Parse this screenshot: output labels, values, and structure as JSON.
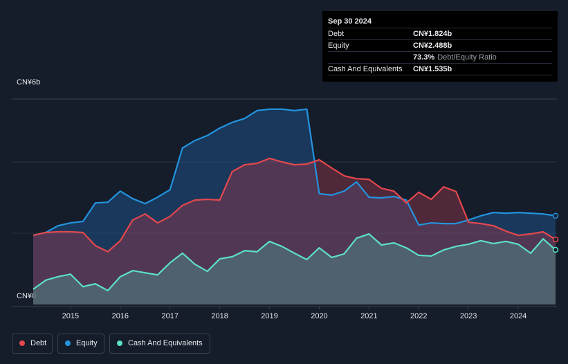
{
  "chart_data": {
    "type": "area",
    "x": [
      2014.25,
      2014.5,
      2014.75,
      2015.0,
      2015.25,
      2015.5,
      2015.75,
      2016.0,
      2016.25,
      2016.5,
      2016.75,
      2017.0,
      2017.25,
      2017.5,
      2017.75,
      2018.0,
      2018.25,
      2018.5,
      2018.75,
      2019.0,
      2019.25,
      2019.5,
      2019.75,
      2020.0,
      2020.25,
      2020.5,
      2020.75,
      2021.0,
      2021.25,
      2021.5,
      2021.75,
      2022.0,
      2022.25,
      2022.5,
      2022.75,
      2023.0,
      2023.25,
      2023.5,
      2023.75,
      2024.0,
      2024.25,
      2024.5,
      2024.75
    ],
    "xlim": [
      2014.25,
      2024.75
    ],
    "xticks": [
      2015,
      2016,
      2017,
      2018,
      2019,
      2020,
      2021,
      2022,
      2023,
      2024
    ],
    "ylim": [
      0,
      6
    ],
    "yticks": [
      {
        "value": 0,
        "label": "CN¥0"
      },
      {
        "value": 6,
        "label": "CN¥6b"
      }
    ],
    "ygrid": [
      2,
      4
    ],
    "series": [
      {
        "name": "Debt",
        "color": "#e5484d",
        "fill": "rgba(150,55,75,0.45)",
        "values": [
          1.94,
          2.02,
          2.04,
          2.04,
          2.02,
          1.65,
          1.48,
          1.79,
          2.37,
          2.54,
          2.29,
          2.47,
          2.78,
          2.93,
          2.95,
          2.93,
          3.73,
          3.92,
          3.96,
          4.1,
          4.0,
          3.92,
          3.94,
          4.06,
          3.83,
          3.61,
          3.53,
          3.51,
          3.26,
          3.18,
          2.85,
          3.15,
          2.95,
          3.3,
          3.17,
          2.31,
          2.27,
          2.21,
          2.06,
          1.94,
          1.98,
          2.04,
          1.824
        ]
      },
      {
        "name": "Equity",
        "color": "#2394df",
        "fill": "rgba(30,90,150,0.45)",
        "values": [
          1.94,
          2.02,
          2.21,
          2.29,
          2.33,
          2.85,
          2.87,
          3.18,
          2.97,
          2.83,
          3.01,
          3.22,
          4.39,
          4.6,
          4.74,
          4.95,
          5.11,
          5.22,
          5.44,
          5.48,
          5.48,
          5.44,
          5.48,
          3.11,
          3.07,
          3.18,
          3.44,
          3.01,
          2.99,
          3.03,
          2.93,
          2.23,
          2.29,
          2.27,
          2.27,
          2.37,
          2.49,
          2.58,
          2.56,
          2.58,
          2.56,
          2.54,
          2.488
        ]
      },
      {
        "name": "Cash And Equivalents",
        "color": "#5ce0c6",
        "fill": "rgba(80,160,150,0.4)",
        "values": [
          0.43,
          0.68,
          0.78,
          0.85,
          0.5,
          0.58,
          0.39,
          0.78,
          0.95,
          0.89,
          0.83,
          1.17,
          1.44,
          1.13,
          0.93,
          1.28,
          1.34,
          1.51,
          1.48,
          1.77,
          1.63,
          1.44,
          1.26,
          1.59,
          1.32,
          1.42,
          1.86,
          1.98,
          1.67,
          1.73,
          1.59,
          1.38,
          1.36,
          1.53,
          1.63,
          1.69,
          1.79,
          1.71,
          1.77,
          1.69,
          1.44,
          1.84,
          1.535
        ]
      }
    ],
    "tooltip": {
      "date": "Sep 30 2024",
      "rows": [
        {
          "label": "Debt",
          "value": "CN¥1.824b"
        },
        {
          "label": "Equity",
          "value": "CN¥2.488b"
        },
        {
          "label": "",
          "value": "73.3%",
          "note": "Debt/Equity Ratio"
        },
        {
          "label": "Cash And Equivalents",
          "value": "CN¥1.535b"
        }
      ]
    }
  }
}
